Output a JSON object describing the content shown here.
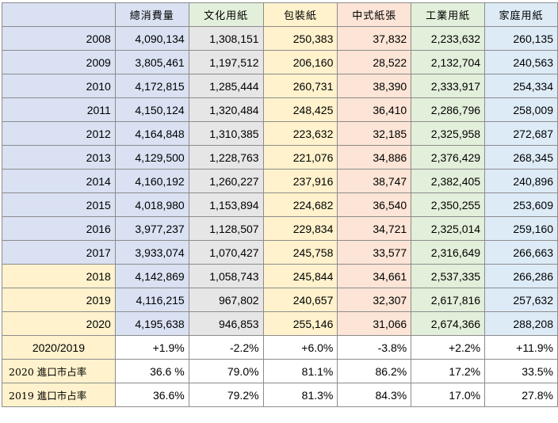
{
  "colors": {
    "header_blank": "#d9e1f2",
    "blue_row": "#d9e1f2",
    "yellow_row": "#fff2cc",
    "col_total": "#d9e1f2",
    "col_culture": "#e7e6e6",
    "col_packaging": "#fff2cc",
    "col_chinese": "#fce4d6",
    "col_industrial": "#e2efda",
    "col_household": "#ddebf7"
  },
  "headers": [
    "",
    "總消費量",
    "文化用紙",
    "包裝紙",
    "中式紙張",
    "工業用紙",
    "家庭用紙"
  ],
  "rows": [
    {
      "label": "2008",
      "values": [
        "4,090,134",
        "1,308,151",
        "250,383",
        "37,832",
        "2,233,632",
        "260,135"
      ]
    },
    {
      "label": "2009",
      "values": [
        "3,805,461",
        "1,197,512",
        "206,160",
        "28,522",
        "2,132,704",
        "240,563"
      ]
    },
    {
      "label": "2010",
      "values": [
        "4,172,815",
        "1,285,444",
        "260,731",
        "38,390",
        "2,333,917",
        "254,334"
      ]
    },
    {
      "label": "2011",
      "values": [
        "4,150,124",
        "1,320,484",
        "248,425",
        "36,410",
        "2,286,796",
        "258,009"
      ]
    },
    {
      "label": "2012",
      "values": [
        "4,164,848",
        "1,310,385",
        "223,632",
        "32,185",
        "2,325,958",
        "272,687"
      ]
    },
    {
      "label": "2013",
      "values": [
        "4,129,500",
        "1,228,763",
        "221,076",
        "34,886",
        "2,376,429",
        "268,345"
      ]
    },
    {
      "label": "2014",
      "values": [
        "4,160,192",
        "1,260,227",
        "237,916",
        "38,747",
        "2,382,405",
        "240,896"
      ]
    },
    {
      "label": "2015",
      "values": [
        "4,018,980",
        "1,153,894",
        "224,682",
        "36,540",
        "2,350,255",
        "253,609"
      ]
    },
    {
      "label": "2016",
      "values": [
        "3,977,237",
        "1,128,507",
        "229,834",
        "34,721",
        "2,325,014",
        "259,160"
      ]
    },
    {
      "label": "2017",
      "values": [
        "3,933,074",
        "1,070,427",
        "245,758",
        "33,577",
        "2,316,649",
        "266,663"
      ]
    },
    {
      "label": "2018",
      "values": [
        "4,142,869",
        "1,058,743",
        "245,844",
        "34,661",
        "2,537,335",
        "266,286"
      ]
    },
    {
      "label": "2019",
      "values": [
        "4,116,215",
        "967,802",
        "240,657",
        "32,307",
        "2,617,816",
        "257,632"
      ]
    },
    {
      "label": "2020",
      "values": [
        "4,195,638",
        "946,853",
        "255,146",
        "31,066",
        "2,674,366",
        "288,208"
      ]
    },
    {
      "label": "2020/2019",
      "values": [
        "+1.9%",
        "-2.2%",
        "+6.0%",
        "-3.8%",
        "+2.2%",
        "+11.9%"
      ]
    },
    {
      "label": "2020 進口市占率",
      "values": [
        "36.6 %",
        "79.0%",
        "81.1%",
        "86.2%",
        "17.2%",
        "33.5%"
      ]
    },
    {
      "label": "2019 進口市占率",
      "values": [
        "36.6%",
        "79.2%",
        "81.3%",
        "84.3%",
        "17.0%",
        "27.8%"
      ]
    }
  ]
}
